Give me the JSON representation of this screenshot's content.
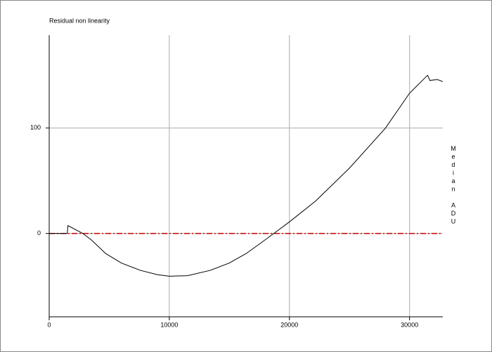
{
  "chart_data": {
    "type": "line",
    "title": "Residual non linearity",
    "ylabel": "Median ADU",
    "x": [
      0,
      1500,
      1560,
      2800,
      3500,
      4700,
      6000,
      7600,
      9000,
      10000,
      11500,
      13400,
      15000,
      16400,
      17500,
      18700,
      20000,
      22200,
      25000,
      28000,
      30000,
      31500,
      31700,
      32300,
      32768
    ],
    "series": [
      {
        "name": "Residual non linearity",
        "color": "#000000",
        "values": [
          0,
          0,
          7.5,
          0,
          -6,
          -19,
          -28,
          -35,
          -39,
          -40.5,
          -40,
          -35,
          -28,
          -19,
          -10,
          0,
          11,
          31,
          62,
          100,
          133,
          150,
          145,
          146,
          144
        ]
      }
    ],
    "xlim": [
      0,
      32768
    ],
    "ylim": [
      -79,
      188
    ],
    "xticks": [
      0,
      10000,
      20000,
      30000
    ],
    "yticks": [
      0,
      100
    ],
    "grid": true,
    "reference_line": {
      "value": 0,
      "color": "#cc0000"
    }
  }
}
